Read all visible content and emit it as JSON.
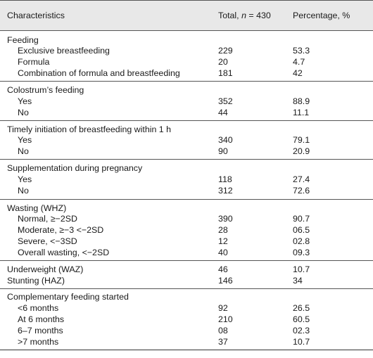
{
  "header": {
    "characteristics": "Characteristics",
    "total_prefix": "Total, ",
    "total_n": "n",
    "total_suffix": " = 430",
    "percentage": "Percentage, %"
  },
  "groups": [
    {
      "title": "Feeding",
      "rows": [
        {
          "label": "Exclusive breastfeeding",
          "total": "229",
          "pct": "53.3"
        },
        {
          "label": "Formula",
          "total": "20",
          "pct": "4.7"
        },
        {
          "label": "Combination of formula and breastfeeding",
          "total": "181",
          "pct": "42"
        }
      ]
    },
    {
      "title": "Colostrum’s feeding",
      "rows": [
        {
          "label": "Yes",
          "total": "352",
          "pct": "88.9"
        },
        {
          "label": "No",
          "total": "44",
          "pct": "11.1"
        }
      ]
    },
    {
      "title": "Timely initiation of breastfeeding within 1 h",
      "rows": [
        {
          "label": "Yes",
          "total": "340",
          "pct": "79.1"
        },
        {
          "label": "No",
          "total": "90",
          "pct": "20.9"
        }
      ]
    },
    {
      "title": "Supplementation during pregnancy",
      "rows": [
        {
          "label": "Yes",
          "total": "118",
          "pct": "27.4"
        },
        {
          "label": "No",
          "total": "312",
          "pct": "72.6"
        }
      ]
    },
    {
      "title": "Wasting (WHZ)",
      "rows": [
        {
          "label": "Normal, ≥−2SD",
          "total": "390",
          "pct": "90.7"
        },
        {
          "label": "Moderate, ≥−3 <−2SD",
          "total": "28",
          "pct": "06.5"
        },
        {
          "label": "Severe, <−3SD",
          "total": "12",
          "pct": "02.8"
        },
        {
          "label": "Overall wasting, <−2SD",
          "total": "40",
          "pct": "09.3"
        }
      ]
    },
    {
      "title": "",
      "rows": [
        {
          "label": "Underweight (WAZ)",
          "total": "46",
          "pct": "10.7"
        },
        {
          "label": "Stunting (HAZ)",
          "total": "146",
          "pct": "34"
        }
      ]
    },
    {
      "title": "Complementary feeding started",
      "rows": [
        {
          "label": "<6 months",
          "total": "92",
          "pct": "26.5"
        },
        {
          "label": "At 6 months",
          "total": "210",
          "pct": "60.5"
        },
        {
          "label": "6–7 months",
          "total": "08",
          "pct": "02.3"
        },
        {
          "label": ">7 months",
          "total": "37",
          "pct": "10.7"
        }
      ]
    }
  ]
}
